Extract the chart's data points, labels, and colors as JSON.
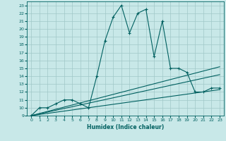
{
  "title": "",
  "xlabel": "Humidex (Indice chaleur)",
  "bg_color": "#c8e8e8",
  "grid_color": "#a0c8c8",
  "line_color": "#006060",
  "xlim": [
    -0.5,
    23.5
  ],
  "ylim": [
    9,
    23.5
  ],
  "xticks": [
    0,
    1,
    2,
    3,
    4,
    5,
    6,
    7,
    8,
    9,
    10,
    11,
    12,
    13,
    14,
    15,
    16,
    17,
    18,
    19,
    20,
    21,
    22,
    23
  ],
  "yticks": [
    9,
    10,
    11,
    12,
    13,
    14,
    15,
    16,
    17,
    18,
    19,
    20,
    21,
    22,
    23
  ],
  "series": [
    [
      0,
      9
    ],
    [
      1,
      10
    ],
    [
      2,
      10
    ],
    [
      3,
      10.5
    ],
    [
      4,
      11
    ],
    [
      5,
      11
    ],
    [
      6,
      10.5
    ],
    [
      7,
      10
    ],
    [
      8,
      14
    ],
    [
      9,
      18.5
    ],
    [
      10,
      21.5
    ],
    [
      11,
      23
    ],
    [
      12,
      19.5
    ],
    [
      13,
      22
    ],
    [
      14,
      22.5
    ],
    [
      15,
      16.5
    ],
    [
      16,
      21
    ],
    [
      17,
      15
    ],
    [
      18,
      15
    ],
    [
      19,
      14.5
    ],
    [
      20,
      12
    ],
    [
      21,
      12
    ],
    [
      22,
      12.5
    ],
    [
      23,
      12.5
    ]
  ],
  "line2": [
    [
      0,
      9
    ],
    [
      23,
      15.2
    ]
  ],
  "line3": [
    [
      0,
      9
    ],
    [
      23,
      14.2
    ]
  ],
  "line4": [
    [
      0,
      9
    ],
    [
      23,
      12.3
    ]
  ]
}
